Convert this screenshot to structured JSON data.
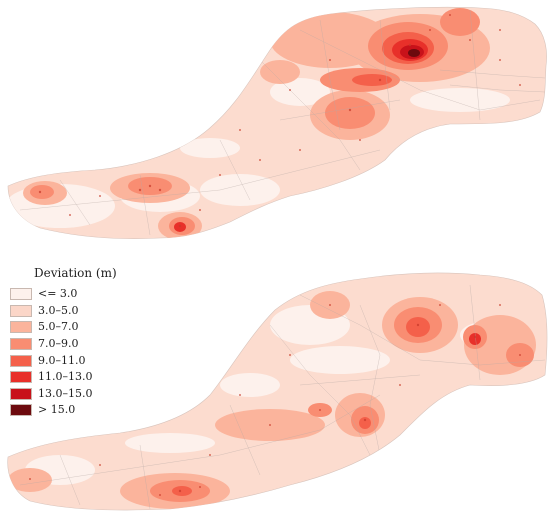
{
  "legend": {
    "title": "Deviation (m)",
    "classes": [
      {
        "label": "<= 3.0",
        "color": "#fdf1ec"
      },
      {
        "label": "3.0–5.0",
        "color": "#fbd6c8"
      },
      {
        "label": "5.0–7.0",
        "color": "#fbb49c"
      },
      {
        "label": "7.0–9.0",
        "color": "#f98d72"
      },
      {
        "label": "9.0–11.0",
        "color": "#f4604a"
      },
      {
        "label": "11.0–13.0",
        "color": "#e8302a"
      },
      {
        "label": "13.0–15.0",
        "color": "#c8121a"
      },
      {
        "label": "> 15.0",
        "color": "#6d0a0e"
      }
    ]
  }
}
